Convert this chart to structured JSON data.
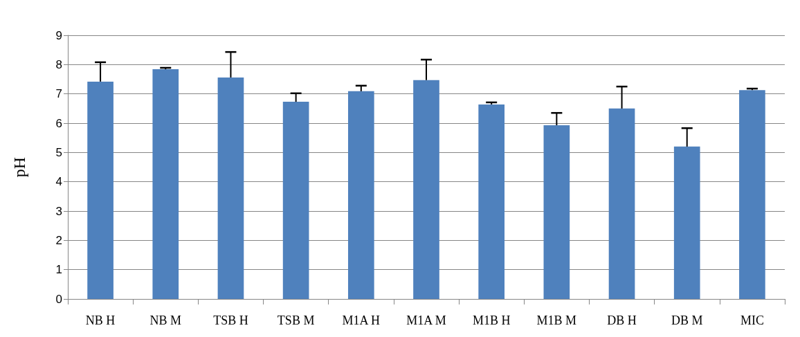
{
  "chart_data": {
    "type": "bar",
    "ylabel": "pH",
    "categories": [
      "NB H",
      "NB M",
      "TSB H",
      "TSB M",
      "M1A H",
      "M1A M",
      "M1B H",
      "M1B M",
      "DB H",
      "DB M",
      "MIC"
    ],
    "values": [
      7.42,
      7.84,
      7.56,
      6.73,
      7.09,
      7.47,
      6.64,
      5.93,
      6.5,
      5.2,
      7.13
    ],
    "errors": [
      [
        7.42,
        8.08
      ],
      [
        7.84,
        7.89
      ],
      [
        7.56,
        8.43
      ],
      [
        6.73,
        7.02
      ],
      [
        7.09,
        7.28
      ],
      [
        7.47,
        8.17
      ],
      [
        6.64,
        6.71
      ],
      [
        5.93,
        6.35
      ],
      [
        6.5,
        7.25
      ],
      [
        5.2,
        5.83
      ],
      [
        7.13,
        7.18
      ]
    ],
    "color": "#4f81bd",
    "ylim": [
      0,
      9
    ],
    "yticks": [
      0,
      1,
      2,
      3,
      4,
      5,
      6,
      7,
      8,
      9
    ],
    "grid": "y"
  }
}
